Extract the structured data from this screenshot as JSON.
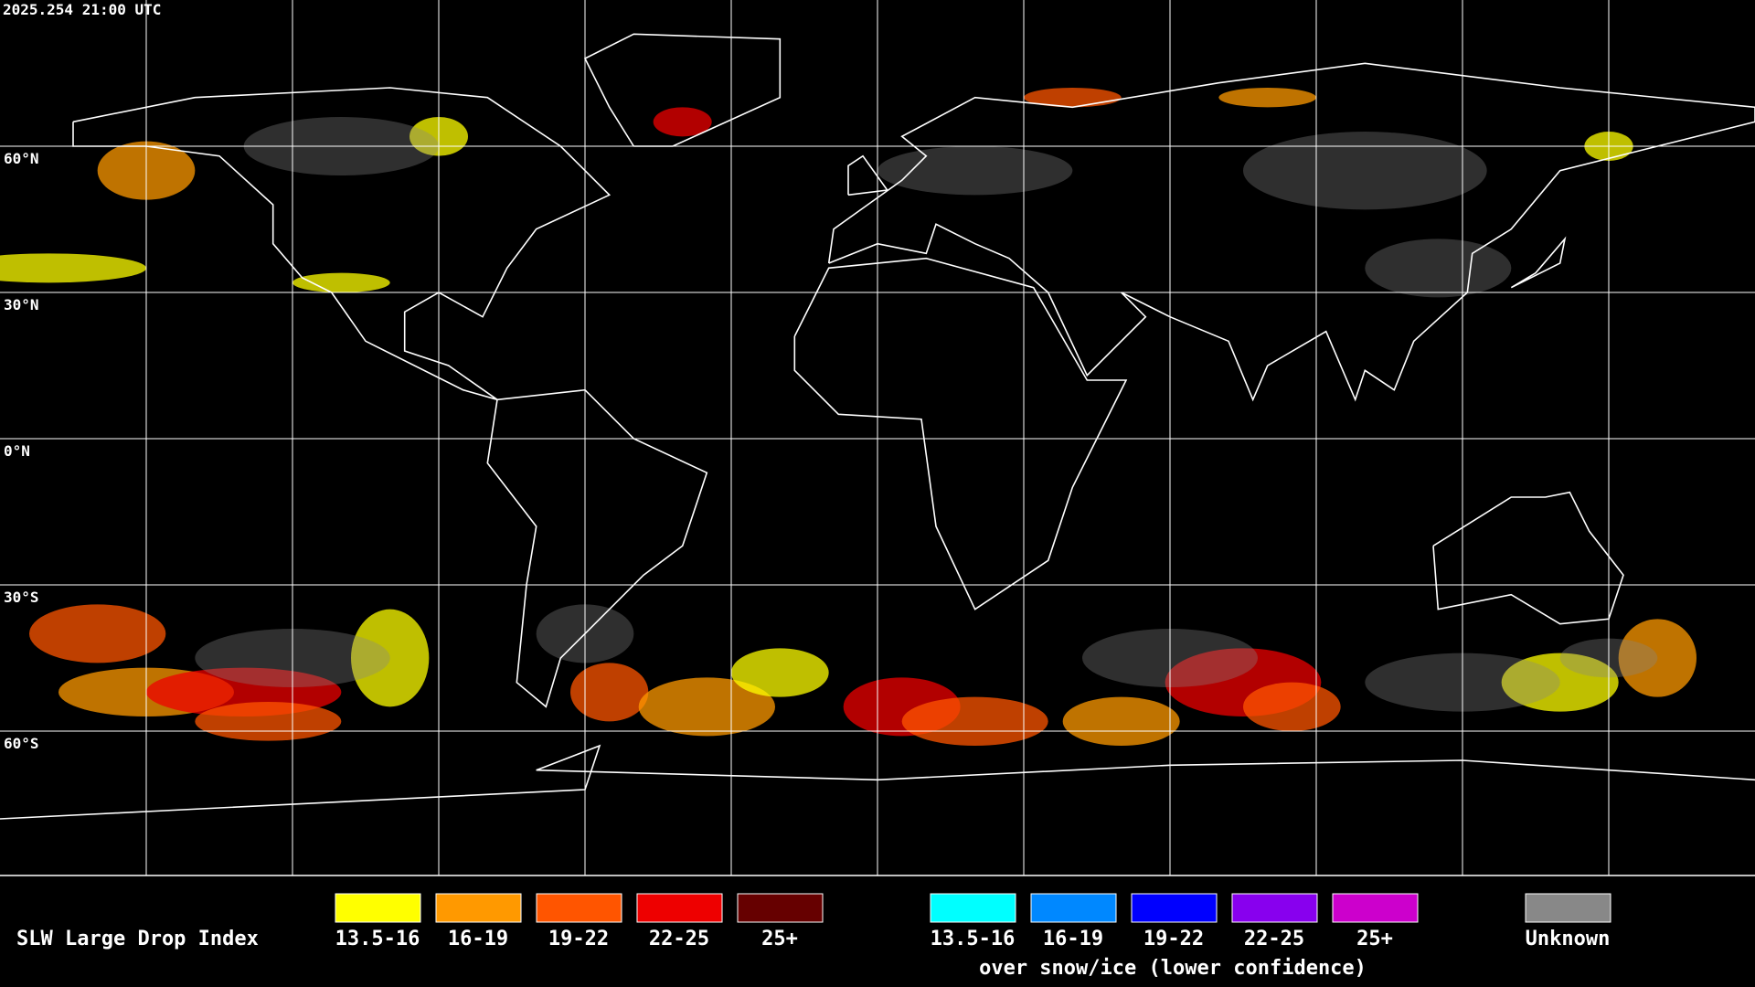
{
  "header": {
    "timestamp": "2025.254 21:00 UTC"
  },
  "grid": {
    "lat_labels": [
      "60°N",
      "30°N",
      "0°N",
      "30°S",
      "60°S"
    ]
  },
  "legend": {
    "title": "SLW Large Drop Index",
    "items": [
      {
        "label": "13.5-16",
        "color": "#ffff00"
      },
      {
        "label": "16-19",
        "color": "#ff9900"
      },
      {
        "label": "19-22",
        "color": "#ff5500"
      },
      {
        "label": "22-25",
        "color": "#ee0000"
      },
      {
        "label": "25+",
        "color": "#660000"
      }
    ],
    "snow_items": [
      {
        "label": "13.5-16",
        "color": "#00ffff"
      },
      {
        "label": "16-19",
        "color": "#0088ff"
      },
      {
        "label": "19-22",
        "color": "#0000ff"
      },
      {
        "label": "22-25",
        "color": "#8800ee"
      },
      {
        "label": "25+",
        "color": "#cc00cc"
      }
    ],
    "snow_caption": "over snow/ice (lower confidence)",
    "unknown": {
      "label": "Unknown",
      "color": "#888888"
    }
  }
}
